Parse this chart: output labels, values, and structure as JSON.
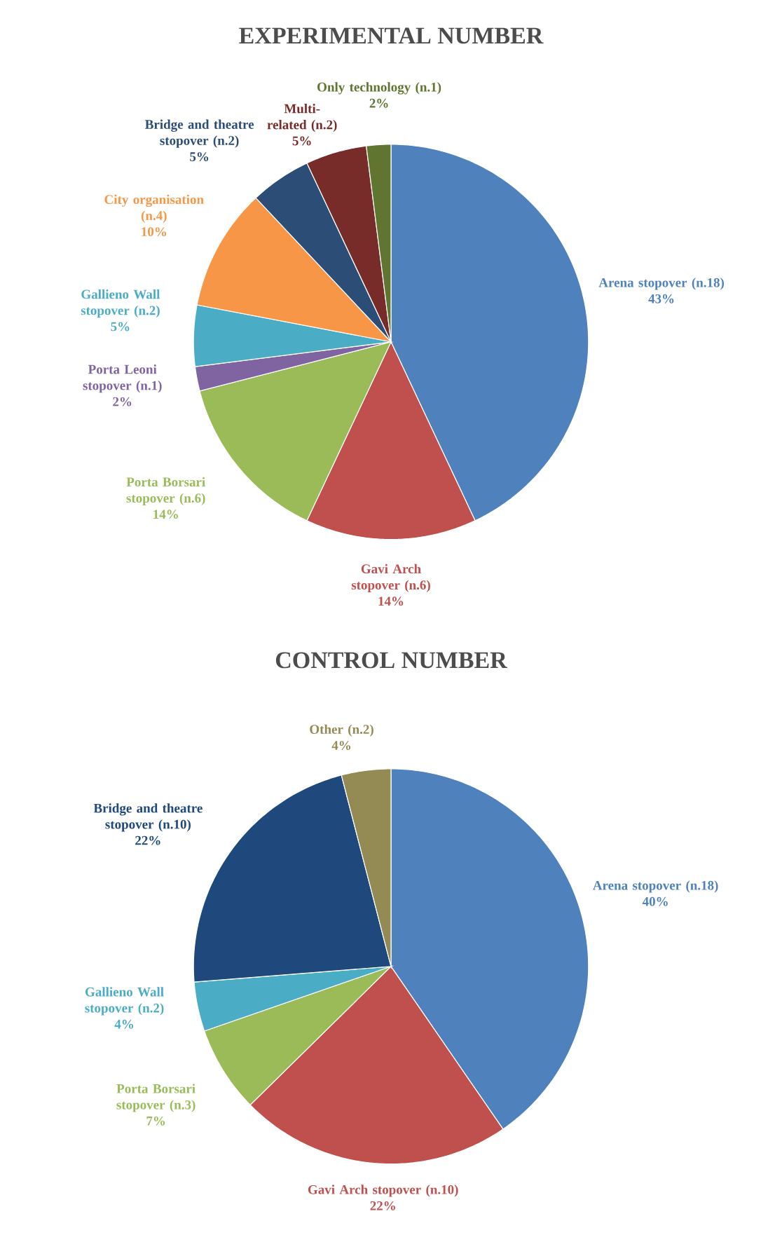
{
  "chart_data": [
    {
      "type": "pie",
      "title": "EXPERIMENTAL NUMBER",
      "categories": [
        "Arena stopover (n.18)",
        "Gavi Arch stopover (n.6)",
        "Porta Borsari stopover (n.6)",
        "Porta Leoni stopover (n.1)",
        "Gallieno Wall stopover (n.2)",
        "City organisation (n.4)",
        "Bridge and theatre stopover (n.2)",
        "Multi-related (n.2)",
        "Only technology (n.1)"
      ],
      "values": [
        43,
        14,
        14,
        2,
        5,
        10,
        5,
        5,
        2
      ],
      "value_labels": [
        "43%",
        "14%",
        "14%",
        "2%",
        "5%",
        "10%",
        "5%",
        "5%",
        "2%"
      ],
      "colors": [
        "#4f81bd",
        "#c0504d",
        "#9bbb59",
        "#8064a2",
        "#4bacc6",
        "#f79646",
        "#2c4d75",
        "#772c2a",
        "#5f7530"
      ]
    },
    {
      "type": "pie",
      "title": "CONTROL NUMBER",
      "categories": [
        "Arena stopover (n.18)",
        "Gavi Arch stopover (n.10)",
        "Porta Borsari stopover (n.3)",
        "Gallieno Wall stopover (n.2)",
        "Bridge and theatre stopover (n.10)",
        "Other (n.2)"
      ],
      "values": [
        40,
        22,
        7,
        4,
        22,
        4
      ],
      "value_labels": [
        "40%",
        "22%",
        "7%",
        "4%",
        "22%",
        "4%"
      ],
      "colors": [
        "#4f81bd",
        "#c0504d",
        "#9bbb59",
        "#4bacc6",
        "#1f497d",
        "#948a54"
      ]
    }
  ]
}
